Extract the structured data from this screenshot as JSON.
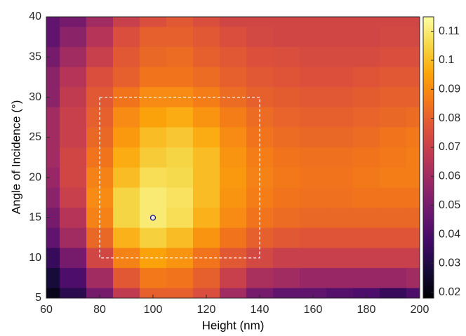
{
  "chart_data": {
    "type": "heatmap",
    "xlabel": "Height (nm)",
    "ylabel": "Angle of Incidence (°)",
    "x": [
      60,
      70,
      80,
      90,
      100,
      110,
      120,
      130,
      140,
      150,
      160,
      170,
      180,
      190,
      200
    ],
    "y": [
      40,
      37.5,
      35,
      32.5,
      30,
      27.5,
      25,
      22.5,
      20,
      17.5,
      15,
      12.5,
      10,
      7.5,
      5
    ],
    "values": [
      [
        0.045,
        0.05,
        0.06,
        0.07,
        0.075,
        0.078,
        0.075,
        0.072,
        0.072,
        0.072,
        0.072,
        0.072,
        0.072,
        0.072,
        0.072
      ],
      [
        0.045,
        0.055,
        0.065,
        0.075,
        0.08,
        0.08,
        0.078,
        0.075,
        0.073,
        0.072,
        0.072,
        0.072,
        0.072,
        0.073,
        0.073
      ],
      [
        0.05,
        0.06,
        0.07,
        0.078,
        0.082,
        0.083,
        0.08,
        0.078,
        0.076,
        0.075,
        0.074,
        0.074,
        0.074,
        0.075,
        0.075
      ],
      [
        0.055,
        0.065,
        0.075,
        0.08,
        0.085,
        0.085,
        0.083,
        0.08,
        0.078,
        0.077,
        0.076,
        0.076,
        0.077,
        0.078,
        0.078
      ],
      [
        0.055,
        0.068,
        0.078,
        0.085,
        0.09,
        0.09,
        0.087,
        0.083,
        0.08,
        0.079,
        0.078,
        0.078,
        0.079,
        0.08,
        0.08
      ],
      [
        0.06,
        0.07,
        0.08,
        0.09,
        0.095,
        0.097,
        0.092,
        0.087,
        0.083,
        0.081,
        0.08,
        0.08,
        0.081,
        0.082,
        0.083
      ],
      [
        0.06,
        0.07,
        0.082,
        0.093,
        0.1,
        0.102,
        0.097,
        0.09,
        0.085,
        0.083,
        0.082,
        0.082,
        0.083,
        0.085,
        0.086
      ],
      [
        0.06,
        0.072,
        0.085,
        0.097,
        0.103,
        0.105,
        0.1,
        0.092,
        0.087,
        0.085,
        0.084,
        0.084,
        0.085,
        0.086,
        0.087
      ],
      [
        0.058,
        0.072,
        0.088,
        0.1,
        0.107,
        0.106,
        0.1,
        0.093,
        0.088,
        0.086,
        0.085,
        0.085,
        0.086,
        0.087,
        0.087
      ],
      [
        0.055,
        0.07,
        0.09,
        0.105,
        0.11,
        0.108,
        0.1,
        0.092,
        0.087,
        0.085,
        0.084,
        0.084,
        0.085,
        0.085,
        0.085
      ],
      [
        0.05,
        0.065,
        0.088,
        0.105,
        0.11,
        0.107,
        0.098,
        0.09,
        0.085,
        0.083,
        0.082,
        0.082,
        0.082,
        0.082,
        0.082
      ],
      [
        0.045,
        0.06,
        0.082,
        0.098,
        0.104,
        0.1,
        0.092,
        0.085,
        0.08,
        0.078,
        0.077,
        0.077,
        0.077,
        0.077,
        0.077
      ],
      [
        0.035,
        0.05,
        0.072,
        0.088,
        0.095,
        0.092,
        0.085,
        0.078,
        0.073,
        0.07,
        0.07,
        0.07,
        0.07,
        0.07,
        0.07
      ],
      [
        0.028,
        0.04,
        0.06,
        0.078,
        0.086,
        0.085,
        0.08,
        0.07,
        0.062,
        0.06,
        0.058,
        0.058,
        0.058,
        0.058,
        0.06
      ],
      [
        0.022,
        0.032,
        0.05,
        0.068,
        0.08,
        0.08,
        0.075,
        0.06,
        0.05,
        0.045,
        0.045,
        0.042,
        0.04,
        0.035,
        0.04
      ]
    ],
    "xlim": [
      60,
      200
    ],
    "ylim": [
      5,
      40
    ],
    "xticks": [
      60,
      80,
      100,
      120,
      140,
      160,
      180,
      200
    ],
    "yticks": [
      5,
      10,
      15,
      20,
      25,
      30,
      35,
      40
    ],
    "colormap": "inferno",
    "clim": [
      0.018,
      0.115
    ],
    "cticks": [
      0.02,
      0.03,
      0.04,
      0.05,
      0.06,
      0.07,
      0.08,
      0.09,
      0.1,
      0.11
    ],
    "region": {
      "x": [
        80,
        140
      ],
      "y": [
        10,
        30
      ]
    },
    "marker": {
      "x": 100,
      "y": 15
    }
  }
}
